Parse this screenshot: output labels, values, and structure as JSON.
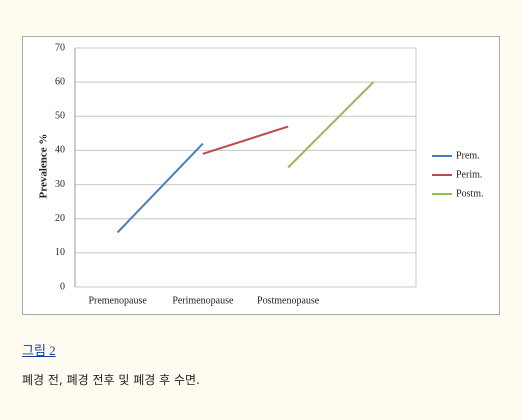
{
  "chart_data": {
    "type": "line",
    "categories": [
      "Premenopause",
      "Perimenopause",
      "Postmenopause",
      null
    ],
    "series": [
      {
        "name": "Prem.",
        "color": "#4a7ebb",
        "values": [
          16,
          42,
          null,
          null
        ]
      },
      {
        "name": "Perim.",
        "color": "#be4b48",
        "values": [
          null,
          39,
          47,
          null
        ]
      },
      {
        "name": "Postm.",
        "color": "#98b954",
        "values": [
          null,
          null,
          35,
          60
        ]
      }
    ],
    "y_label": "Prevalence %",
    "ylim": [
      0,
      70
    ],
    "yticks": [
      0,
      10,
      20,
      30,
      40,
      50,
      60,
      70
    ],
    "grid": true,
    "legend": "right"
  },
  "figure_label": "그림 2",
  "figure_caption": "폐경 전, 폐경 전후 및 폐경 후 수면."
}
